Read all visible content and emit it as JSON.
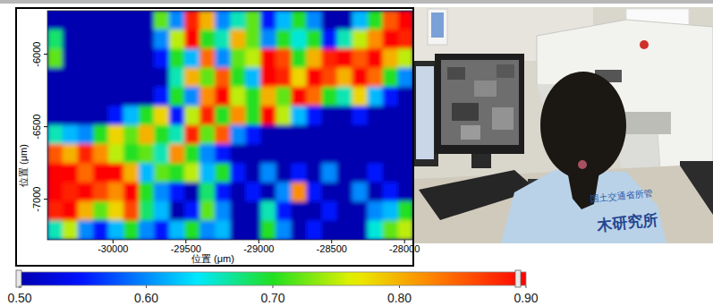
{
  "chart_data": {
    "type": "heatmap",
    "xlabel": "位置 (μm)",
    "ylabel": "位置 (μm)",
    "xlim": [
      -30450,
      -27940
    ],
    "ylim": [
      -7280,
      -5700
    ],
    "xticks": [
      -30000,
      -29500,
      -29000,
      -28500,
      -28000
    ],
    "yticks": [
      -6000,
      -6500,
      -7000
    ],
    "cells": [
      [
        0.5,
        0.5,
        0.5,
        0.5,
        0.5,
        0.5,
        0.5,
        0.72,
        0.6,
        0.88,
        0.8,
        0.6,
        0.66,
        0.72,
        0.55,
        0.62,
        0.7,
        0.6,
        0.5,
        0.5,
        0.62,
        0.7,
        0.85,
        0.9
      ],
      [
        0.68,
        0.5,
        0.5,
        0.5,
        0.5,
        0.5,
        0.5,
        0.6,
        0.75,
        0.9,
        0.7,
        0.66,
        0.8,
        0.72,
        0.6,
        0.7,
        0.65,
        0.7,
        0.55,
        0.66,
        0.75,
        0.82,
        0.9,
        0.88
      ],
      [
        0.72,
        0.5,
        0.5,
        0.5,
        0.5,
        0.5,
        0.5,
        0.55,
        0.7,
        0.62,
        0.84,
        0.6,
        0.72,
        0.75,
        0.9,
        0.86,
        0.7,
        0.8,
        0.88,
        0.9,
        0.85,
        0.9,
        0.8,
        0.75
      ],
      [
        0.5,
        0.5,
        0.5,
        0.5,
        0.5,
        0.5,
        0.5,
        0.5,
        0.66,
        0.8,
        0.72,
        0.85,
        0.7,
        0.62,
        0.9,
        0.88,
        0.78,
        0.9,
        0.86,
        0.8,
        0.9,
        0.84,
        0.7,
        0.6
      ],
      [
        0.5,
        0.5,
        0.5,
        0.5,
        0.5,
        0.5,
        0.5,
        0.55,
        0.7,
        0.6,
        0.82,
        0.9,
        0.75,
        0.7,
        0.8,
        0.72,
        0.9,
        0.84,
        0.7,
        0.66,
        0.78,
        0.62,
        0.55,
        0.5
      ],
      [
        0.5,
        0.5,
        0.5,
        0.5,
        0.55,
        0.62,
        0.7,
        0.78,
        0.55,
        0.75,
        0.88,
        0.7,
        0.82,
        0.7,
        0.9,
        0.75,
        0.62,
        0.55,
        0.5,
        0.5,
        0.55,
        0.5,
        0.5,
        0.5
      ],
      [
        0.66,
        0.62,
        0.6,
        0.7,
        0.78,
        0.72,
        0.8,
        0.7,
        0.66,
        0.88,
        0.72,
        0.85,
        0.6,
        0.55,
        0.5,
        0.5,
        0.5,
        0.5,
        0.5,
        0.5,
        0.5,
        0.5,
        0.5,
        0.5
      ],
      [
        0.85,
        0.8,
        0.88,
        0.82,
        0.75,
        0.7,
        0.72,
        0.66,
        0.82,
        0.7,
        0.6,
        0.55,
        0.5,
        0.5,
        0.5,
        0.5,
        0.5,
        0.5,
        0.5,
        0.5,
        0.5,
        0.5,
        0.5,
        0.5
      ],
      [
        0.9,
        0.9,
        0.84,
        0.9,
        0.9,
        0.8,
        0.62,
        0.72,
        0.7,
        0.75,
        0.62,
        0.7,
        0.55,
        0.5,
        0.6,
        0.5,
        0.55,
        0.5,
        0.6,
        0.5,
        0.5,
        0.55,
        0.5,
        0.5
      ],
      [
        0.9,
        0.88,
        0.9,
        0.86,
        0.82,
        0.9,
        0.7,
        0.6,
        0.55,
        0.5,
        0.68,
        0.55,
        0.5,
        0.55,
        0.5,
        0.6,
        0.82,
        0.55,
        0.5,
        0.5,
        0.6,
        0.5,
        0.55,
        0.5
      ],
      [
        0.88,
        0.9,
        0.8,
        0.72,
        0.78,
        0.86,
        0.68,
        0.62,
        0.5,
        0.55,
        0.72,
        0.6,
        0.5,
        0.5,
        0.66,
        0.55,
        0.5,
        0.5,
        0.55,
        0.5,
        0.5,
        0.6,
        0.62,
        0.7
      ],
      [
        0.66,
        0.75,
        0.6,
        0.55,
        0.62,
        0.7,
        0.6,
        0.55,
        0.62,
        0.7,
        0.6,
        0.62,
        0.5,
        0.5,
        0.7,
        0.6,
        0.5,
        0.55,
        0.5,
        0.5,
        0.5,
        0.65,
        0.72,
        0.75
      ]
    ],
    "colorbar": {
      "range": [
        0.5,
        0.9
      ],
      "ticks": [
        {
          "value": 0.5,
          "label": "0.50"
        },
        {
          "value": 0.6,
          "label": "0.60"
        },
        {
          "value": 0.7,
          "label": "0.70"
        },
        {
          "value": 0.8,
          "label": "0.80"
        },
        {
          "value": 0.9,
          "label": "0.90"
        }
      ]
    }
  },
  "photo": {
    "texts": [
      "国土交通省所管",
      "木研究所"
    ]
  }
}
